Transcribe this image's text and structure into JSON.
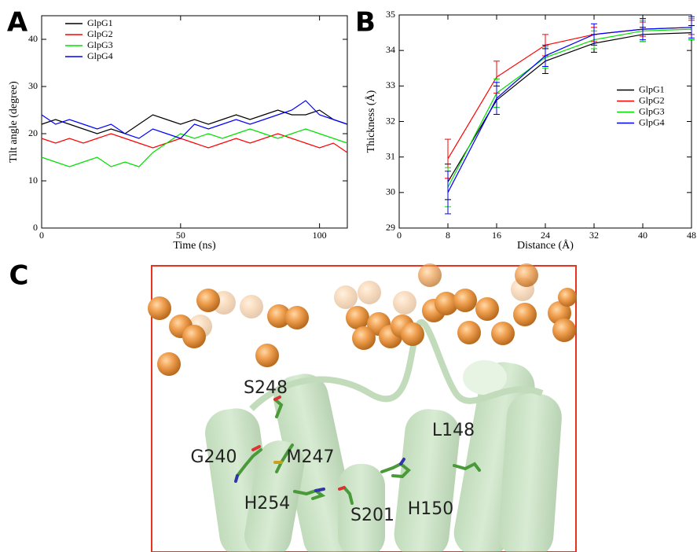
{
  "chart_data": [
    {
      "type": "line",
      "panel": "A",
      "xlabel": "Time (ns)",
      "ylabel": "Tilt angle (degree)",
      "x": [
        0,
        5,
        10,
        15,
        20,
        25,
        30,
        35,
        40,
        45,
        50,
        55,
        60,
        65,
        70,
        75,
        80,
        85,
        90,
        95,
        100,
        105,
        110
      ],
      "series": [
        {
          "name": "GlpG1",
          "color": "#000000",
          "values": [
            22,
            23,
            22,
            21,
            20,
            21,
            20,
            22,
            24,
            23,
            22,
            23,
            22,
            23,
            24,
            23,
            24,
            25,
            24,
            24,
            25,
            23,
            22
          ]
        },
        {
          "name": "GlpG2",
          "color": "#ff0000",
          "values": [
            19,
            18,
            19,
            18,
            19,
            20,
            19,
            18,
            17,
            18,
            19,
            18,
            17,
            18,
            19,
            18,
            19,
            20,
            19,
            18,
            17,
            18,
            16
          ]
        },
        {
          "name": "GlpG3",
          "color": "#00e000",
          "values": [
            15,
            14,
            13,
            14,
            15,
            13,
            14,
            13,
            16,
            18,
            20,
            19,
            20,
            19,
            20,
            21,
            20,
            19,
            20,
            21,
            20,
            19,
            18
          ]
        },
        {
          "name": "GlpG4",
          "color": "#0000ff",
          "values": [
            24,
            22,
            23,
            22,
            21,
            22,
            20,
            19,
            21,
            20,
            19,
            22,
            21,
            22,
            23,
            22,
            23,
            24,
            25,
            27,
            24,
            23,
            22
          ]
        }
      ],
      "xlim": [
        0,
        110
      ],
      "xticks": [
        0,
        50,
        100
      ],
      "ylim": [
        0,
        45
      ],
      "yticks": [
        0,
        10,
        20,
        30,
        40
      ],
      "legend": "upper left"
    },
    {
      "type": "errorbar-line",
      "panel": "B",
      "xlabel": "Distance (Å)",
      "ylabel": "Thickness (Å)",
      "x": [
        8,
        16,
        24,
        32,
        40,
        48
      ],
      "series": [
        {
          "name": "GlpG1",
          "color": "#000000",
          "values": [
            30.3,
            32.6,
            33.7,
            34.2,
            34.45,
            34.5
          ],
          "errors": [
            0.5,
            0.4,
            0.35,
            0.25,
            0.2,
            0.2
          ]
        },
        {
          "name": "GlpG2",
          "color": "#ff0000",
          "values": [
            30.95,
            33.25,
            34.15,
            34.45,
            34.6,
            34.65
          ],
          "errors": [
            0.55,
            0.45,
            0.3,
            0.2,
            0.2,
            0.2
          ]
        },
        {
          "name": "GlpG3",
          "color": "#00e000",
          "values": [
            30.15,
            32.8,
            33.8,
            34.3,
            34.55,
            34.6
          ],
          "errors": [
            0.55,
            0.4,
            0.3,
            0.25,
            0.3,
            0.3
          ]
        },
        {
          "name": "GlpG4",
          "color": "#0000ff",
          "values": [
            30.0,
            32.65,
            33.85,
            34.45,
            34.6,
            34.65
          ],
          "errors": [
            0.6,
            0.45,
            0.3,
            0.3,
            0.3,
            0.3
          ]
        }
      ],
      "xlim": [
        0,
        48
      ],
      "xticks": [
        0,
        8,
        16,
        24,
        32,
        40,
        48
      ],
      "ylim": [
        29,
        35
      ],
      "yticks": [
        29,
        30,
        31,
        32,
        33,
        34,
        35
      ],
      "legend": "center right"
    }
  ],
  "structure": {
    "panel": "C",
    "residues": [
      "S248",
      "G240",
      "M247",
      "H254",
      "S201",
      "H150",
      "L148"
    ]
  }
}
